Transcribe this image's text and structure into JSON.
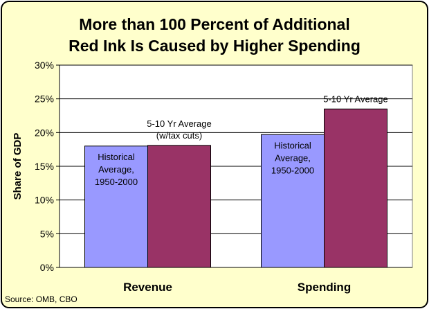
{
  "chart_data": {
    "type": "bar",
    "title_lines": [
      "More than 100 Percent of Additional",
      "Red Ink Is Caused by Higher Spending"
    ],
    "categories": [
      "Revenue",
      "Spending"
    ],
    "series": [
      {
        "name": "Historical Average, 1950-2000",
        "color": "#9999FF",
        "values": [
          18.0,
          19.7
        ]
      },
      {
        "name": "5-10 Yr Average",
        "color": "#993366",
        "values": [
          18.1,
          23.5
        ]
      }
    ],
    "annotations": {
      "revenue_hist": [
        "Historical",
        "Average,",
        "1950-2000"
      ],
      "revenue_avg": [
        "5-10 Yr Average",
        "(w/tax cuts)"
      ],
      "spending_hist": [
        "Historical",
        "Average,",
        "1950-2000"
      ],
      "spending_avg": [
        "5-10 Yr Average"
      ]
    },
    "ylabel": "Share of GDP",
    "yticks": [
      "0%",
      "5%",
      "10%",
      "15%",
      "20%",
      "25%",
      "30%"
    ],
    "ylim": [
      0,
      30
    ],
    "grid": true,
    "source": "Source: OMB, CBO"
  }
}
